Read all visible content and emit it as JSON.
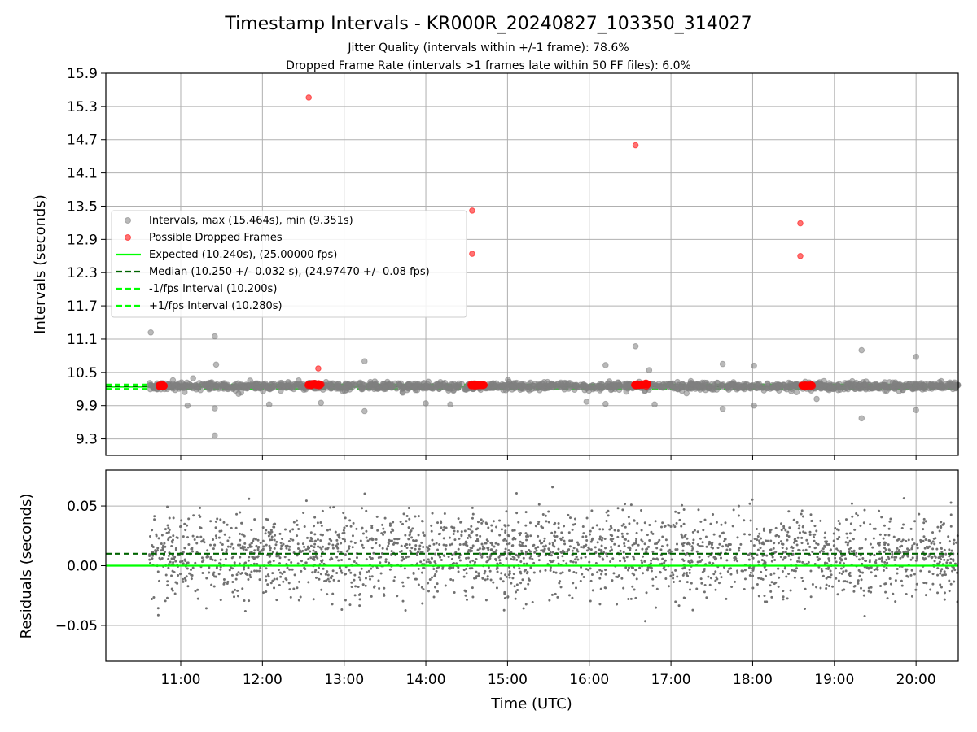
{
  "chart_data": [
    {
      "type": "scatter",
      "title": "Timestamp Intervals - KR000R_20240827_103350_314027",
      "subtitle_lines": [
        "Jitter Quality (intervals within +/-1 frame): 78.6%",
        "Dropped Frame Rate (intervals >1 frames late within 50 FF files): 6.0%"
      ],
      "ylabel": "Intervals (seconds)",
      "xlim": [
        "10:05",
        "20:31"
      ],
      "ylim": [
        9.0,
        15.9
      ],
      "yticks": [
        "9.3",
        "9.9",
        "10.5",
        "11.1",
        "11.7",
        "12.3",
        "12.9",
        "13.5",
        "14.1",
        "14.7",
        "15.3",
        "15.9"
      ],
      "xticks": [
        "11:00",
        "12:00",
        "13:00",
        "14:00",
        "15:00",
        "16:00",
        "17:00",
        "18:00",
        "19:00",
        "20:00"
      ],
      "grid": true,
      "legend_position": "center-left",
      "legend": [
        "Intervals, max (15.464s), min (9.351s)",
        "Possible Dropped Frames",
        "Expected (10.240s), (25.00000 fps)",
        "Median (10.250 +/- 0.032 s), (24.97470 +/- 0.08 fps)",
        "-1/fps Interval (10.200s)",
        "+1/fps Interval (10.280s)"
      ],
      "series": [
        {
          "name": "Intervals, max (15.464s), min (9.351s)",
          "kind": "scatter",
          "color": "#808080",
          "x_range": [
            "10:37",
            "20:31"
          ],
          "baseline": 10.25,
          "points": [
            {
              "x": "10:38",
              "y": 11.22
            },
            {
              "x": "11:25",
              "y": 11.15
            },
            {
              "x": "11:26",
              "y": 10.64
            },
            {
              "x": "11:25",
              "y": 9.85
            },
            {
              "x": "11:25",
              "y": 9.36
            },
            {
              "x": "11:05",
              "y": 9.9
            },
            {
              "x": "12:05",
              "y": 9.92
            },
            {
              "x": "12:43",
              "y": 9.95
            },
            {
              "x": "13:15",
              "y": 10.7
            },
            {
              "x": "13:15",
              "y": 9.8
            },
            {
              "x": "14:00",
              "y": 9.94
            },
            {
              "x": "14:18",
              "y": 9.92
            },
            {
              "x": "15:58",
              "y": 9.97
            },
            {
              "x": "16:12",
              "y": 10.63
            },
            {
              "x": "16:12",
              "y": 9.93
            },
            {
              "x": "16:34",
              "y": 10.97
            },
            {
              "x": "16:44",
              "y": 10.54
            },
            {
              "x": "16:48",
              "y": 9.92
            },
            {
              "x": "17:38",
              "y": 10.65
            },
            {
              "x": "17:38",
              "y": 9.84
            },
            {
              "x": "18:01",
              "y": 10.62
            },
            {
              "x": "18:01",
              "y": 9.9
            },
            {
              "x": "18:47",
              "y": 10.02
            },
            {
              "x": "19:20",
              "y": 10.9
            },
            {
              "x": "19:20",
              "y": 9.67
            },
            {
              "x": "20:00",
              "y": 10.78
            },
            {
              "x": "20:00",
              "y": 9.82
            }
          ]
        },
        {
          "name": "Possible Dropped Frames",
          "kind": "scatter",
          "color": "#ff0000",
          "points": [
            {
              "x": "12:34",
              "y": 15.46
            },
            {
              "x": "14:34",
              "y": 13.42
            },
            {
              "x": "14:34",
              "y": 12.64
            },
            {
              "x": "16:34",
              "y": 14.6
            },
            {
              "x": "18:35",
              "y": 13.19
            },
            {
              "x": "18:35",
              "y": 12.6
            },
            {
              "x": "12:41",
              "y": 10.57
            }
          ],
          "clusters": [
            {
              "x0": "10:44",
              "x1": "10:48",
              "y": 10.26
            },
            {
              "x0": "12:33",
              "x1": "12:43",
              "y": 10.28
            },
            {
              "x0": "14:33",
              "x1": "14:43",
              "y": 10.27
            },
            {
              "x0": "16:33",
              "x1": "16:43",
              "y": 10.28
            },
            {
              "x0": "18:36",
              "x1": "18:44",
              "y": 10.26
            }
          ]
        },
        {
          "name": "Expected (10.240s), (25.00000 fps)",
          "kind": "hline",
          "y": 10.24,
          "color": "#00ff00",
          "style": "solid"
        },
        {
          "name": "Median (10.250 +/- 0.032 s), (24.97470 +/- 0.08 fps)",
          "kind": "hline",
          "y": 10.25,
          "color": "#006400",
          "style": "dashed"
        },
        {
          "name": "-1/fps Interval (10.200s)",
          "kind": "hline",
          "y": 10.2,
          "color": "#00ff00",
          "style": "dashed"
        },
        {
          "name": "+1/fps Interval (10.280s)",
          "kind": "hline",
          "y": 10.28,
          "color": "#00ff00",
          "style": "dashed"
        }
      ]
    },
    {
      "type": "scatter",
      "ylabel": "Residuals (seconds)",
      "xlabel": "Time (UTC)",
      "xlim": [
        "10:05",
        "20:31"
      ],
      "ylim": [
        -0.08,
        0.08
      ],
      "yticks": [
        "−0.05",
        "0.00",
        "0.05"
      ],
      "ytick_values": [
        -0.05,
        0.0,
        0.05
      ],
      "xticks": [
        "11:00",
        "12:00",
        "13:00",
        "14:00",
        "15:00",
        "16:00",
        "17:00",
        "18:00",
        "19:00",
        "20:00"
      ],
      "grid": true,
      "series": [
        {
          "kind": "scatter",
          "color": "#707070",
          "x_range": [
            "10:37",
            "20:31"
          ],
          "center": 0.01,
          "spread": 0.025
        },
        {
          "kind": "hline",
          "y": 0.0,
          "color": "#00ff00",
          "style": "solid"
        },
        {
          "kind": "hline",
          "y": 0.01,
          "color": "#006400",
          "style": "dashed"
        }
      ]
    }
  ]
}
